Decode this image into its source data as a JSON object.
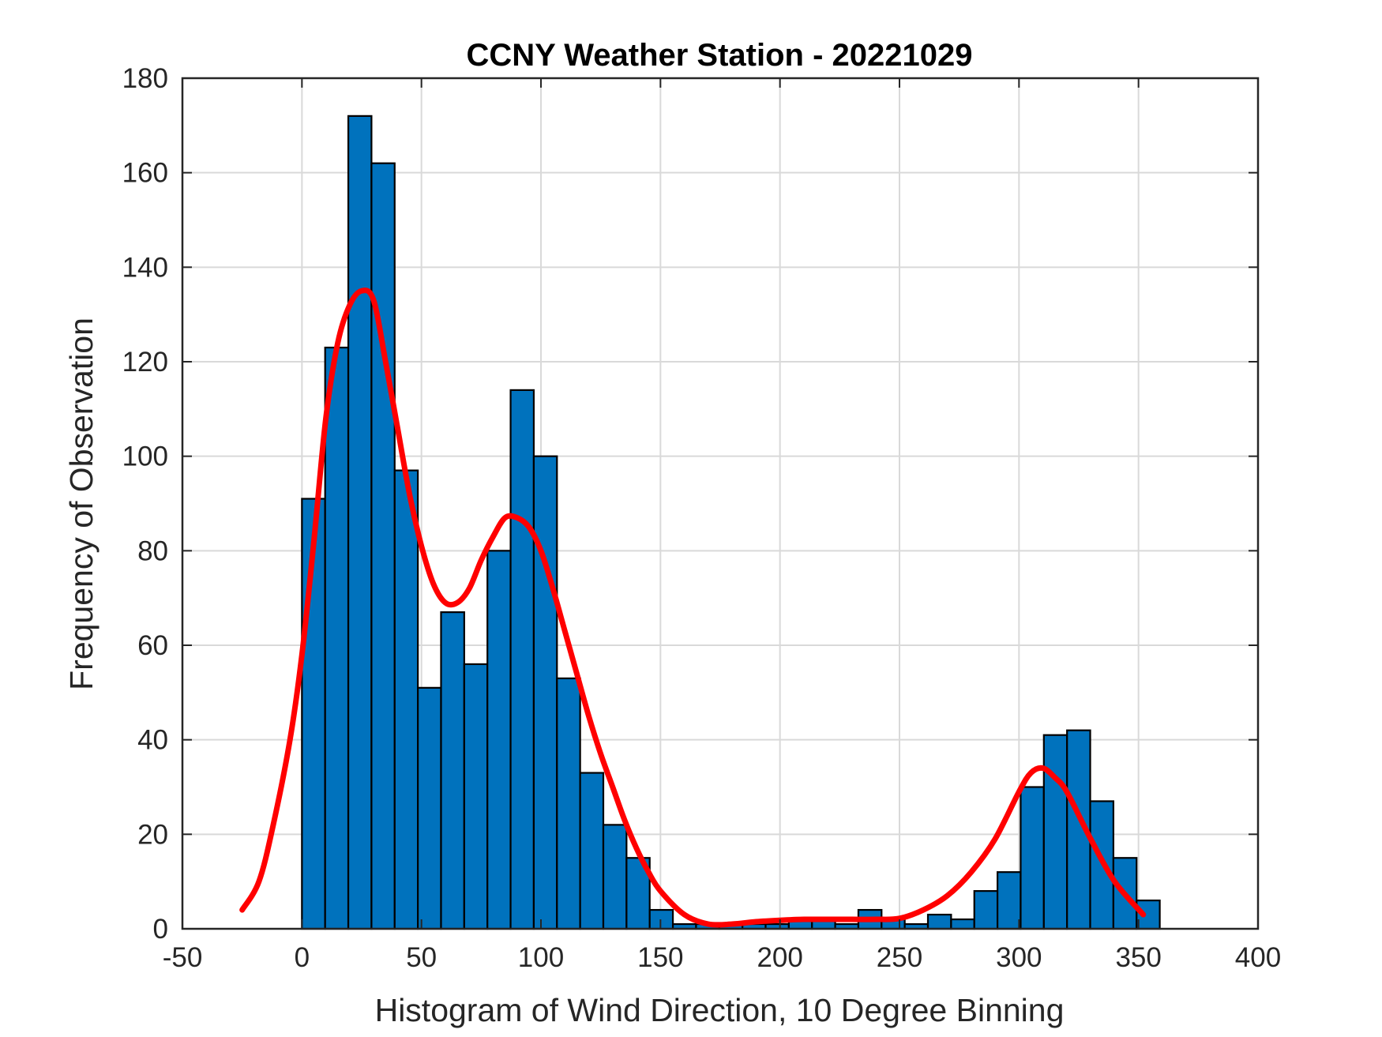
{
  "chart_data": {
    "type": "bar",
    "title": "CCNY Weather Station - 20221029",
    "xlabel": "Histogram of Wind Direction, 10 Degree Binning",
    "ylabel": "Frequency of Observation",
    "xlim": [
      -50,
      400
    ],
    "ylim": [
      0,
      180
    ],
    "xticks": [
      "-50",
      "0",
      "50",
      "100",
      "150",
      "200",
      "250",
      "300",
      "350",
      "400"
    ],
    "yticks": [
      "0",
      "20",
      "40",
      "60",
      "80",
      "100",
      "120",
      "140",
      "160",
      "180"
    ],
    "grid": true,
    "bin_width": 9.7,
    "bin_start": 0,
    "histogram": {
      "values": [
        91,
        123,
        172,
        162,
        97,
        51,
        67,
        56,
        80,
        114,
        100,
        53,
        33,
        22,
        15,
        4,
        1,
        1,
        1,
        1,
        1,
        2,
        2,
        1,
        4,
        2,
        1,
        3,
        2,
        8,
        12,
        30,
        41,
        42,
        27,
        15,
        6
      ]
    },
    "fit_curve": {
      "x": [
        -25,
        -18,
        -12,
        -5,
        0,
        5,
        10,
        15,
        20,
        25,
        30,
        35,
        40,
        45,
        50,
        55,
        60,
        65,
        70,
        75,
        80,
        85,
        90,
        95,
        100,
        105,
        110,
        115,
        120,
        125,
        130,
        135,
        140,
        145,
        150,
        160,
        170,
        180,
        190,
        200,
        210,
        220,
        230,
        240,
        250,
        260,
        270,
        280,
        290,
        300,
        305,
        310,
        315,
        320,
        330,
        340,
        352
      ],
      "y": [
        4,
        10,
        22,
        40,
        58,
        82,
        108,
        124,
        132,
        135,
        133,
        120,
        106,
        92,
        81,
        73,
        69,
        69,
        72,
        78,
        83,
        87,
        87,
        85,
        80,
        72,
        63,
        54,
        45,
        37,
        30,
        23,
        17,
        12,
        8,
        3,
        1,
        1,
        1.5,
        1.8,
        2,
        2,
        2,
        2,
        2.2,
        4,
        7,
        12,
        19,
        29,
        33,
        34,
        32,
        29,
        19,
        10,
        3
      ]
    },
    "colors": {
      "bar": "#0072BD",
      "bar_edge": "#000000",
      "fit": "#FF0000"
    }
  }
}
